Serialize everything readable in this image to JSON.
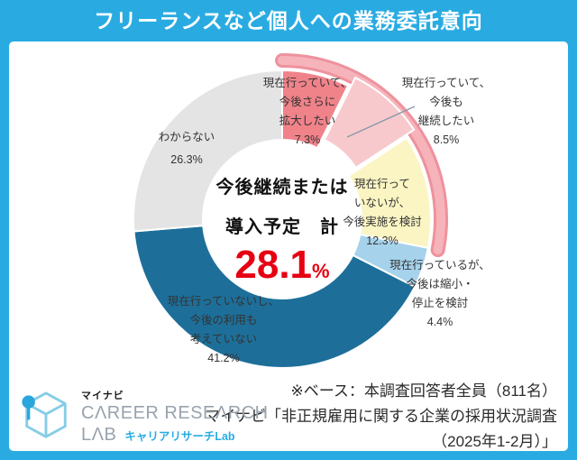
{
  "header": {
    "title": "フリーランスなど個人への業務委託意向"
  },
  "chart_data": {
    "type": "pie",
    "subtype": "donut",
    "title": "フリーランスなど個人への業務委託意向",
    "start_angle": "top",
    "direction": "clockwise",
    "unit": "%",
    "segments": [
      {
        "label": "現在行っていて、今後さらに拡大したい",
        "value": 7.3,
        "color": "#F0828A",
        "exploded": false
      },
      {
        "label": "現在行っていて、今後も継続したい",
        "value": 8.5,
        "color": "#F7C9CD",
        "exploded": true
      },
      {
        "label": "現在行っていないが、今後実施を検討",
        "value": 12.3,
        "color": "#FBF5C3",
        "exploded": false
      },
      {
        "label": "現在行っているが、今後は縮小・停止を検討",
        "value": 4.4,
        "color": "#A6D2EC",
        "exploded": false
      },
      {
        "label": "現在行っていないし、今後の利用も考えていない",
        "value": 41.2,
        "color": "#1D6F9A",
        "exploded": false
      },
      {
        "label": "わからない",
        "value": 26.3,
        "color": "#E4E4E4",
        "exploded": false
      }
    ],
    "callouts": [
      {
        "text": "現在行っていて、\n今後さらに\n拡大したい\n7.3%"
      },
      {
        "text": "現在行っていて、\n今後も\n継続したい\n8.5%"
      },
      {
        "text": "現在行って\nいないが、\n今後実施を検討\n12.3%"
      },
      {
        "text": "現在行っているが、\n今後は縮小・\n停止を検討\n4.4%"
      },
      {
        "text": "現在行っていないし、\n今後の利用も\n考えていない\n41.2%"
      },
      {
        "text": "わからない\n26.3%"
      }
    ],
    "center": {
      "line1": "今後継続または",
      "line2": "導入予定　計",
      "value": "28.1",
      "unit": "%",
      "value_color": "#E60012"
    },
    "highlight_band": {
      "from_pct": 0,
      "to_pct": 28.1,
      "color_outer": "#EE929D",
      "color_inner": "#F6B3BA"
    }
  },
  "footer": {
    "note": "※ベース：本調査回答者全員（811名）",
    "source_line1": "マイナビ「非正規雇用に関する企業の採用状況調査",
    "source_line2": "（2025年1-2月）」"
  },
  "logo": {
    "brand_small": "マイナビ",
    "brand_en_line1": "CΛREER RESEΛRCH",
    "brand_en_line2": "LΛB",
    "brand_jp": "キャリアリサーチLab"
  },
  "colors": {
    "frame_blue": "#29ABE2",
    "accent_red": "#E60012"
  }
}
